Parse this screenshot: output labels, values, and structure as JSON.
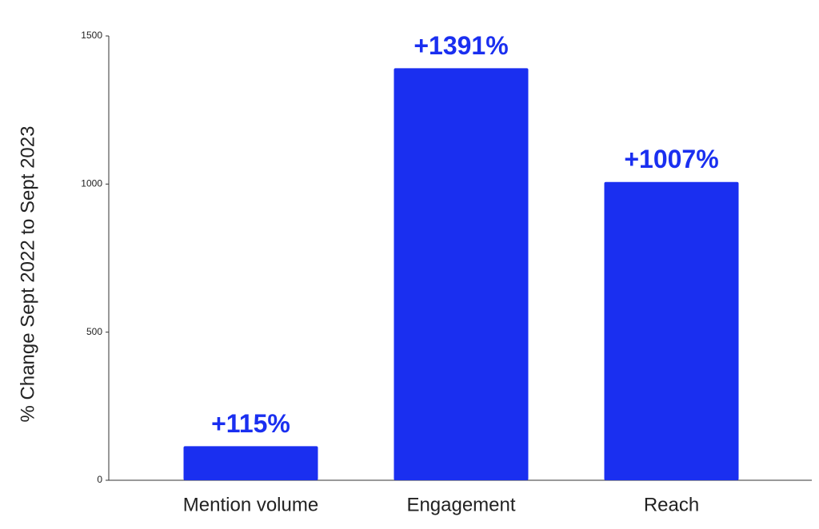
{
  "chart_data": {
    "type": "bar",
    "y_axis_label": "% Change Sept 2022 to Sept 2023",
    "categories": [
      "Mention volume",
      "Engagement",
      "Reach"
    ],
    "values": [
      115,
      1391,
      1007
    ],
    "value_labels": [
      "+115%",
      "+1391%",
      "+1007%"
    ],
    "color": "#1a2ff0",
    "ylim": [
      0,
      1500
    ],
    "yticks": [
      0,
      500,
      1000,
      1500
    ],
    "grid": false
  }
}
